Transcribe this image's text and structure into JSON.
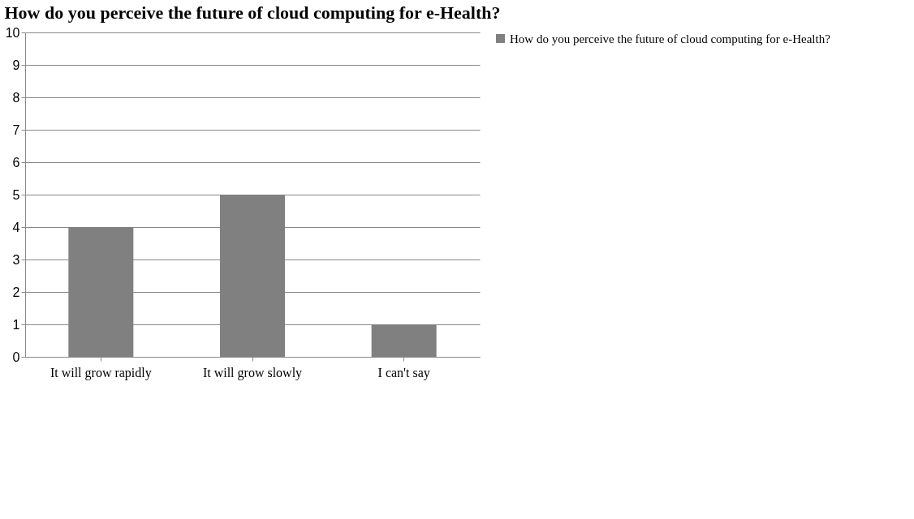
{
  "chart_data": {
    "type": "bar",
    "title": "How do you perceive the future of cloud computing for e-Health?",
    "categories": [
      "It will grow rapidly",
      "It will grow slowly",
      "I can't say"
    ],
    "series": [
      {
        "name": "How do you perceive the future of cloud computing for e-Health?",
        "color": "#808080",
        "values": [
          4,
          5,
          1
        ]
      }
    ],
    "ylim": [
      0,
      10
    ],
    "yticks": [
      0,
      1,
      2,
      3,
      4,
      5,
      6,
      7,
      8,
      9,
      10
    ],
    "grid": "y",
    "legend": "right"
  }
}
